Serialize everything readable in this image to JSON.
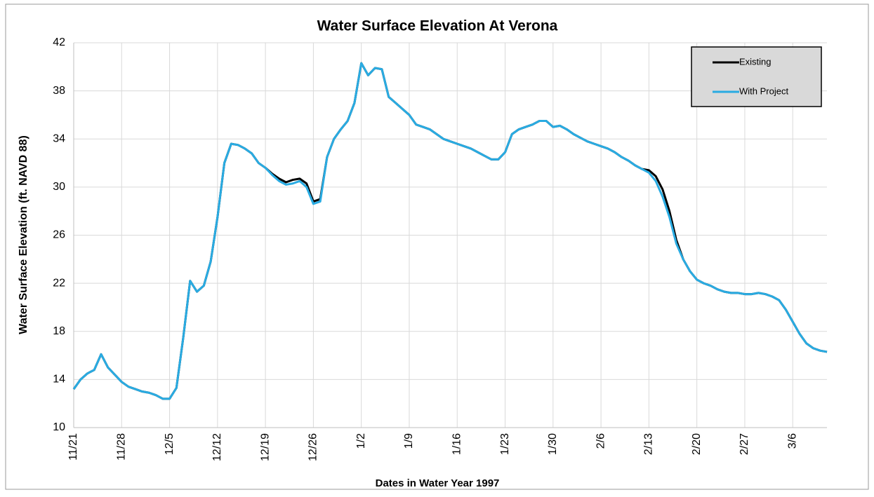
{
  "chart_data": {
    "type": "line",
    "title": "Water Surface Elevation At Verona",
    "xlabel": "Dates in Water Year 1997",
    "ylabel": "Water Surface Elevation (ft. NAVD 88)",
    "x": [
      0,
      1,
      2,
      3,
      4,
      5,
      6,
      7,
      8,
      9,
      10,
      11,
      12,
      13,
      14,
      15,
      16,
      17,
      18,
      19,
      20,
      21,
      22,
      23,
      24,
      25,
      26,
      27,
      28,
      29,
      30,
      31,
      32,
      33,
      34,
      35,
      36,
      37,
      38,
      39,
      40,
      41,
      42,
      43,
      44,
      45,
      46,
      47,
      48,
      49,
      50,
      51,
      52,
      53,
      54,
      55,
      56,
      57,
      58,
      59,
      60,
      61,
      62,
      63,
      64,
      65,
      66,
      67,
      68,
      69,
      70,
      71,
      72,
      73,
      74,
      75,
      76,
      77,
      78,
      79,
      80,
      81,
      82,
      83,
      84,
      85,
      86,
      87,
      88,
      89,
      90,
      91,
      92,
      93,
      94,
      95,
      96,
      97,
      98,
      99,
      100,
      101,
      102,
      103,
      104,
      105,
      106,
      107,
      108,
      109,
      110
    ],
    "series": [
      {
        "name": "Existing",
        "color": "#000000",
        "values": [
          13.2,
          14.0,
          14.5,
          14.8,
          16.1,
          15.0,
          14.4,
          13.8,
          13.4,
          13.2,
          13.0,
          12.9,
          12.7,
          12.4,
          12.4,
          13.3,
          17.5,
          22.2,
          21.3,
          21.8,
          23.8,
          27.5,
          32.0,
          33.6,
          33.5,
          33.2,
          32.8,
          32.0,
          31.6,
          31.1,
          30.7,
          30.4,
          30.6,
          30.7,
          30.3,
          28.8,
          29.0,
          32.5,
          34.0,
          34.8,
          35.5,
          37.0,
          40.3,
          39.3,
          39.9,
          39.8,
          37.5,
          37.0,
          36.5,
          36.0,
          35.2,
          35.0,
          34.8,
          34.4,
          34.0,
          33.8,
          33.6,
          33.4,
          33.2,
          32.9,
          32.6,
          32.3,
          32.3,
          32.9,
          34.4,
          34.8,
          35.0,
          35.2,
          35.5,
          35.5,
          35.0,
          35.1,
          34.8,
          34.4,
          34.1,
          33.8,
          33.6,
          33.4,
          33.2,
          32.9,
          32.5,
          32.2,
          31.8,
          31.5,
          31.4,
          30.9,
          29.8,
          28.0,
          25.6,
          24.0,
          23.0,
          22.3,
          22.0,
          21.8,
          21.5,
          21.3,
          21.2,
          21.2,
          21.1,
          21.1,
          21.2,
          21.1,
          20.9,
          20.6,
          19.8,
          18.8,
          17.8,
          17.0,
          16.6,
          16.4,
          16.3
        ]
      },
      {
        "name": "With Project",
        "color": "#29abe2",
        "values": [
          13.2,
          14.0,
          14.5,
          14.8,
          16.1,
          15.0,
          14.4,
          13.8,
          13.4,
          13.2,
          13.0,
          12.9,
          12.7,
          12.4,
          12.4,
          13.3,
          17.5,
          22.2,
          21.3,
          21.8,
          23.8,
          27.5,
          32.0,
          33.6,
          33.5,
          33.2,
          32.8,
          32.0,
          31.6,
          31.0,
          30.5,
          30.2,
          30.3,
          30.5,
          30.0,
          28.6,
          28.8,
          32.5,
          34.0,
          34.8,
          35.5,
          37.0,
          40.3,
          39.3,
          39.9,
          39.8,
          37.5,
          37.0,
          36.5,
          36.0,
          35.2,
          35.0,
          34.8,
          34.4,
          34.0,
          33.8,
          33.6,
          33.4,
          33.2,
          32.9,
          32.6,
          32.3,
          32.3,
          32.9,
          34.4,
          34.8,
          35.0,
          35.2,
          35.5,
          35.5,
          35.0,
          35.1,
          34.8,
          34.4,
          34.1,
          33.8,
          33.6,
          33.4,
          33.2,
          32.9,
          32.5,
          32.2,
          31.8,
          31.5,
          31.2,
          30.5,
          29.2,
          27.5,
          25.3,
          24.0,
          23.0,
          22.3,
          22.0,
          21.8,
          21.5,
          21.3,
          21.2,
          21.2,
          21.1,
          21.1,
          21.2,
          21.1,
          20.9,
          20.6,
          19.8,
          18.8,
          17.8,
          17.0,
          16.6,
          16.4,
          16.3
        ]
      }
    ],
    "xlim": [
      0,
      110
    ],
    "xticks": [
      {
        "value": 0,
        "label": "11/21"
      },
      {
        "value": 7,
        "label": "11/28"
      },
      {
        "value": 14,
        "label": "12/5"
      },
      {
        "value": 21,
        "label": "12/12"
      },
      {
        "value": 28,
        "label": "12/19"
      },
      {
        "value": 35,
        "label": "12/26"
      },
      {
        "value": 42,
        "label": "1/2"
      },
      {
        "value": 49,
        "label": "1/9"
      },
      {
        "value": 56,
        "label": "1/16"
      },
      {
        "value": 63,
        "label": "1/23"
      },
      {
        "value": 70,
        "label": "1/30"
      },
      {
        "value": 77,
        "label": "2/6"
      },
      {
        "value": 84,
        "label": "2/13"
      },
      {
        "value": 91,
        "label": "2/20"
      },
      {
        "value": 98,
        "label": "2/27"
      },
      {
        "value": 105,
        "label": "3/6"
      }
    ],
    "ylim": [
      10,
      42
    ],
    "yticks": [
      10,
      14,
      18,
      22,
      26,
      30,
      34,
      38,
      42
    ],
    "grid": true,
    "legend": "upper right"
  }
}
